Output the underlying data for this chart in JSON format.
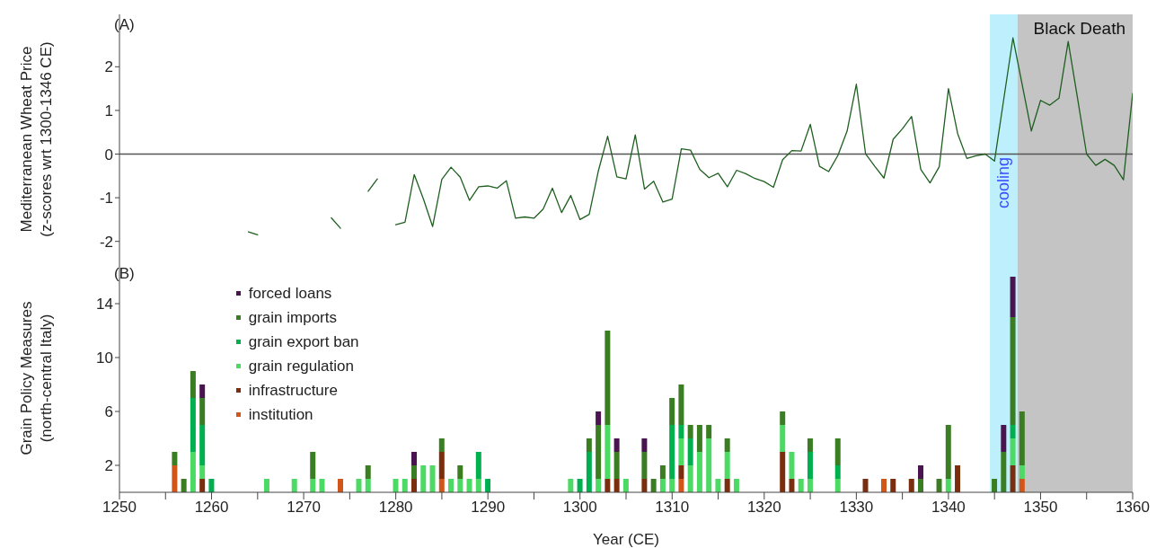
{
  "chart_data": [
    {
      "type": "line",
      "annotations": [
        "(A)"
      ],
      "ylabel": "Mediterranean Wheat Price\n(z-scores wrt 1300-1346 CE)",
      "x": [
        1264,
        1265,
        1266,
        1267,
        1268,
        1269,
        1270,
        1271,
        1272,
        1273,
        1274,
        1275,
        1276,
        1277,
        1278,
        1279,
        1280,
        1281,
        1282,
        1283,
        1284,
        1285,
        1286,
        1287,
        1288,
        1289,
        1290,
        1291,
        1292,
        1293,
        1294,
        1295,
        1296,
        1297,
        1298,
        1299,
        1300,
        1301,
        1302,
        1303,
        1304,
        1305,
        1306,
        1307,
        1308,
        1309,
        1310,
        1311,
        1312,
        1313,
        1314,
        1315,
        1316,
        1317,
        1318,
        1319,
        1320,
        1321,
        1322,
        1323,
        1324,
        1325,
        1326,
        1327,
        1328,
        1329,
        1330,
        1331,
        1332,
        1333,
        1334,
        1335,
        1336,
        1337,
        1338,
        1339,
        1340,
        1341,
        1342,
        1343,
        1344,
        1345,
        1346,
        1347,
        1348,
        1349,
        1350,
        1351,
        1352,
        1353,
        1354,
        1355,
        1356,
        1357,
        1358,
        1359,
        1360
      ],
      "series": [
        {
          "color": "#1f5f1f",
          "values": [
            -1.78,
            -1.85,
            null,
            null,
            null,
            null,
            null,
            null,
            null,
            -1.46,
            -1.7,
            null,
            null,
            -0.85,
            -0.57,
            null,
            -1.62,
            -1.56,
            -0.47,
            -1.03,
            -1.66,
            -0.58,
            -0.3,
            -0.53,
            -1.06,
            -0.75,
            -0.73,
            -0.78,
            -0.61,
            -1.47,
            -1.44,
            -1.47,
            -1.26,
            -0.78,
            -1.34,
            -0.95,
            -1.5,
            -1.38,
            -0.38,
            0.41,
            -0.52,
            -0.57,
            0.44,
            -0.8,
            -0.62,
            -1.1,
            -1.03,
            0.12,
            0.09,
            -0.35,
            -0.54,
            -0.44,
            -0.75,
            -0.37,
            -0.45,
            -0.56,
            -0.63,
            -0.76,
            -0.13,
            0.08,
            0.07,
            0.68,
            -0.28,
            -0.4,
            -0.03,
            0.53,
            1.6,
            0.01,
            -0.28,
            -0.55,
            0.34,
            0.58,
            0.86,
            -0.35,
            -0.66,
            -0.29,
            1.5,
            0.47,
            -0.1,
            -0.04,
            0.0,
            -0.16,
            1.25,
            2.66,
            1.6,
            0.53,
            1.23,
            1.12,
            1.28,
            2.58,
            1.3,
            0.0,
            -0.26,
            -0.12,
            -0.26,
            -0.59,
            1.39
          ]
        }
      ],
      "xlim": [
        1250,
        1360
      ],
      "ylim": [
        -2.5,
        3.2
      ],
      "yticks": [
        -2,
        -1,
        0,
        1,
        2
      ],
      "tick_labels": "y",
      "ref_lines": [
        {
          "axis": "y",
          "value": 0,
          "color": "#555555"
        }
      ],
      "bands": [
        {
          "axis": "x",
          "from": 1344.5,
          "to": 1347.5,
          "label": "cooling",
          "color": "#bdf0fc"
        },
        {
          "axis": "x",
          "from": 1347.5,
          "to": 1360,
          "label": "Black Death",
          "color": "#c4c4c4"
        }
      ]
    },
    {
      "type": "bar",
      "stacked": true,
      "annotations": [
        "(B)"
      ],
      "xlabel": "Year (CE)",
      "ylabel": "Grain Policy Measures\n(north-central Italy)",
      "x": [
        1256,
        1257,
        1258,
        1259,
        1260,
        1266,
        1269,
        1271,
        1272,
        1274,
        1276,
        1277,
        1280,
        1281,
        1282,
        1283,
        1284,
        1285,
        1286,
        1287,
        1288,
        1289,
        1290,
        1299,
        1300,
        1301,
        1302,
        1303,
        1304,
        1305,
        1307,
        1308,
        1309,
        1310,
        1311,
        1312,
        1313,
        1314,
        1315,
        1316,
        1317,
        1322,
        1323,
        1324,
        1325,
        1328,
        1331,
        1333,
        1334,
        1336,
        1337,
        1339,
        1340,
        1341,
        1345,
        1346,
        1347,
        1348
      ],
      "series": [
        {
          "name": "institution",
          "color": "#d2561a",
          "values": [
            2,
            0,
            0,
            0,
            0,
            0,
            0,
            0,
            0,
            1,
            0,
            0,
            0,
            0,
            0,
            0,
            0,
            1,
            0,
            0,
            0,
            0,
            0,
            0,
            0,
            0,
            0,
            0,
            0,
            0,
            0,
            0,
            0,
            0,
            1,
            0,
            0,
            0,
            0,
            0,
            0,
            0,
            0,
            0,
            0,
            0,
            0,
            1,
            0,
            0,
            0,
            0,
            0,
            0,
            0,
            0,
            0,
            1
          ]
        },
        {
          "name": "infrastructure",
          "color": "#7a2e0e",
          "values": [
            0,
            0,
            0,
            1,
            0,
            0,
            0,
            0,
            0,
            0,
            0,
            0,
            0,
            0,
            1,
            0,
            0,
            2,
            0,
            0,
            0,
            0,
            0,
            0,
            0,
            0,
            0,
            1,
            1,
            0,
            1,
            0,
            0,
            0,
            1,
            0,
            0,
            0,
            0,
            1,
            0,
            3,
            1,
            0,
            0,
            0,
            1,
            0,
            1,
            1,
            0,
            0,
            0,
            2,
            0,
            0,
            2,
            0
          ]
        },
        {
          "name": "grain regulation",
          "color": "#4cd964",
          "values": [
            0,
            0,
            3,
            1,
            0,
            1,
            1,
            1,
            1,
            0,
            1,
            1,
            1,
            1,
            0,
            2,
            2,
            0,
            1,
            1,
            1,
            1,
            0,
            1,
            0,
            0,
            1,
            4,
            0,
            1,
            0,
            0,
            1,
            1,
            2,
            2,
            3,
            4,
            1,
            2,
            1,
            2,
            2,
            1,
            1,
            1,
            0,
            0,
            0,
            0,
            0,
            0,
            1,
            0,
            0,
            0,
            2,
            1
          ]
        },
        {
          "name": "grain export ban",
          "color": "#00b050",
          "values": [
            0,
            0,
            4,
            3,
            1,
            0,
            0,
            0,
            0,
            0,
            0,
            0,
            0,
            0,
            0,
            0,
            0,
            0,
            0,
            0,
            0,
            2,
            1,
            0,
            1,
            3,
            0,
            0,
            0,
            0,
            0,
            0,
            0,
            4,
            1,
            2,
            0,
            0,
            0,
            0,
            0,
            0,
            0,
            0,
            2,
            1,
            0,
            0,
            0,
            0,
            0,
            0,
            0,
            0,
            0,
            0,
            1,
            0
          ]
        },
        {
          "name": "grain imports",
          "color": "#3a7d22",
          "values": [
            1,
            1,
            2,
            2,
            0,
            0,
            0,
            2,
            0,
            0,
            0,
            1,
            0,
            0,
            1,
            0,
            0,
            1,
            0,
            1,
            0,
            0,
            0,
            0,
            0,
            1,
            4,
            7,
            2,
            0,
            2,
            1,
            1,
            2,
            3,
            1,
            2,
            1,
            0,
            1,
            0,
            1,
            0,
            0,
            1,
            2,
            0,
            0,
            0,
            0,
            1,
            1,
            4,
            0,
            1,
            3,
            8,
            4
          ]
        },
        {
          "name": "forced loans",
          "color": "#4a1450",
          "values": [
            0,
            0,
            0,
            1,
            0,
            0,
            0,
            0,
            0,
            0,
            0,
            0,
            0,
            0,
            1,
            0,
            0,
            0,
            0,
            0,
            0,
            0,
            0,
            0,
            0,
            0,
            1,
            0,
            1,
            0,
            1,
            0,
            0,
            0,
            0,
            0,
            0,
            0,
            0,
            0,
            0,
            0,
            0,
            0,
            0,
            0,
            0,
            0,
            0,
            0,
            1,
            0,
            0,
            0,
            0,
            2,
            3,
            0
          ]
        }
      ],
      "xlim": [
        1250,
        1360
      ],
      "xticks": [
        1250,
        {
          "value": 1255,
          "label": null
        },
        1260,
        {
          "value": 1265,
          "label": null
        },
        1270,
        {
          "value": 1275,
          "label": null
        },
        1280,
        {
          "value": 1285,
          "label": null
        },
        1290,
        {
          "value": 1295,
          "label": null
        },
        1300,
        {
          "value": 1305,
          "label": null
        },
        1310,
        {
          "value": 1315,
          "label": null
        },
        1320,
        {
          "value": 1325,
          "label": null
        },
        1330,
        {
          "value": 1335,
          "label": null
        },
        1340,
        {
          "value": 1345,
          "label": null
        },
        1350,
        {
          "value": 1355,
          "label": null
        },
        1360
      ],
      "ylim": [
        0,
        17
      ],
      "yticks": [
        2,
        6,
        10,
        14
      ],
      "legend": "top left",
      "bands": [
        {
          "axis": "x",
          "from": 1344.5,
          "to": 1347.5,
          "color": "#bdf0fc"
        },
        {
          "axis": "x",
          "from": 1347.5,
          "to": 1360,
          "color": "#c4c4c4"
        }
      ]
    }
  ]
}
